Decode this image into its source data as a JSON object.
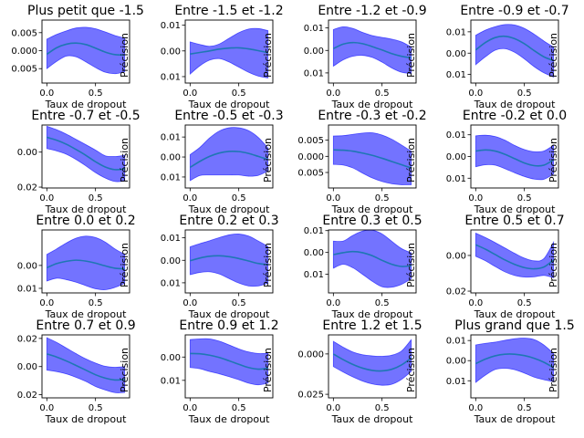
{
  "figure": {
    "xlabel": "Taux de dropout",
    "ylabel": "Précision",
    "band_color": "#0000ff",
    "line_color": "#1f77b4",
    "frame_color": "#000000"
  },
  "chart_data": [
    {
      "type": "area",
      "title": "Plus petit que -1.5",
      "xlim": [
        -0.05,
        0.85
      ],
      "ylim": [
        -0.009,
        0.0085
      ],
      "yticks": [
        0.005,
        0.0,
        -0.005
      ],
      "ytick_labels": [
        "0.005",
        "0.000",
        "0.005"
      ],
      "xticks": [
        0,
        0.5
      ],
      "xtick_labels": [
        "0.0",
        "0.5"
      ],
      "x": [
        0,
        0.1,
        0.2,
        0.3,
        0.4,
        0.5,
        0.6,
        0.7,
        0.8
      ],
      "mean": [
        -0.001,
        0.0008,
        0.0018,
        0.0021,
        0.0017,
        0.0007,
        -0.0004,
        -0.0011,
        -0.0012
      ],
      "upper": [
        0.0032,
        0.0045,
        0.0055,
        0.0063,
        0.0065,
        0.0061,
        0.0052,
        0.0042,
        0.0035
      ],
      "lower": [
        -0.005,
        -0.003,
        -0.0015,
        -0.0017,
        -0.0031,
        -0.0047,
        -0.006,
        -0.0064,
        -0.0059
      ]
    },
    {
      "type": "area",
      "title": "Entre -1.5 et -1.2",
      "xlim": [
        -0.05,
        0.85
      ],
      "ylim": [
        -0.0125,
        0.012
      ],
      "yticks": [
        0.01,
        0.0,
        -0.01
      ],
      "ytick_labels": [
        "0.01",
        "0.00",
        "0.01"
      ],
      "xticks": [
        0,
        0.5
      ],
      "xtick_labels": [
        "0.0",
        "0.5"
      ],
      "x": [
        0,
        0.1,
        0.2,
        0.3,
        0.4,
        0.5,
        0.6,
        0.7,
        0.8
      ],
      "mean": [
        -0.0012,
        -0.0006,
        0.0,
        0.0007,
        0.0011,
        0.0012,
        0.0008,
        0.0001,
        -0.0007
      ],
      "upper": [
        0.0035,
        0.0025,
        0.0018,
        0.0027,
        0.0049,
        0.0071,
        0.0085,
        0.0087,
        0.0079
      ],
      "lower": [
        -0.009,
        -0.0058,
        -0.0036,
        -0.003,
        -0.0043,
        -0.0063,
        -0.0083,
        -0.0098,
        -0.0105
      ]
    },
    {
      "type": "area",
      "title": "Entre -1.2 et -0.9",
      "xlim": [
        -0.05,
        0.85
      ],
      "ylim": [
        -0.0145,
        0.0135
      ],
      "yticks": [
        0.01,
        0.0,
        -0.01
      ],
      "ytick_labels": [
        "0.01",
        "0.00",
        "0.01"
      ],
      "xticks": [
        0,
        0.5
      ],
      "xtick_labels": [
        "0.0",
        "0.5"
      ],
      "x": [
        0,
        0.1,
        0.2,
        0.3,
        0.4,
        0.5,
        0.6,
        0.7,
        0.8
      ],
      "mean": [
        0.0008,
        0.0028,
        0.0035,
        0.003,
        0.0017,
        0.0002,
        -0.0014,
        -0.0026,
        -0.0033
      ],
      "upper": [
        0.0093,
        0.0105,
        0.0098,
        0.008,
        0.0066,
        0.0058,
        0.005,
        0.0038,
        0.0015
      ],
      "lower": [
        -0.007,
        -0.0042,
        -0.0026,
        -0.0022,
        -0.0031,
        -0.0052,
        -0.0078,
        -0.0097,
        -0.0103
      ]
    },
    {
      "type": "area",
      "title": "Entre -0.9 et -0.7",
      "xlim": [
        -0.05,
        0.85
      ],
      "ylim": [
        -0.014,
        0.0155
      ],
      "yticks": [
        0.01,
        0.0,
        -0.01
      ],
      "ytick_labels": [
        "0.01",
        "0.00",
        "0.01"
      ],
      "xticks": [
        0,
        0.5
      ],
      "xtick_labels": [
        "0.0",
        "0.5"
      ],
      "x": [
        0,
        0.1,
        0.2,
        0.3,
        0.4,
        0.5,
        0.6,
        0.7,
        0.8
      ],
      "mean": [
        0.0015,
        0.005,
        0.0073,
        0.0079,
        0.0068,
        0.0044,
        0.0012,
        -0.0017,
        -0.0035
      ],
      "upper": [
        0.0084,
        0.0108,
        0.0124,
        0.0134,
        0.0132,
        0.0116,
        0.0089,
        0.0057,
        0.0028
      ],
      "lower": [
        -0.0054,
        -0.0017,
        0.0014,
        0.0021,
        0.0004,
        -0.0027,
        -0.0063,
        -0.0092,
        -0.0112
      ]
    },
    {
      "type": "area",
      "title": "Entre -0.7 et -0.5",
      "xlim": [
        -0.05,
        0.85
      ],
      "ylim": [
        -0.0205,
        0.0155
      ],
      "yticks": [
        0.0,
        -0.02
      ],
      "ytick_labels": [
        "0.00",
        "0.02"
      ],
      "xticks": [
        0,
        0.5
      ],
      "xtick_labels": [
        "0.0",
        "0.5"
      ],
      "x": [
        0,
        0.1,
        0.2,
        0.3,
        0.4,
        0.5,
        0.6,
        0.7,
        0.8
      ],
      "mean": [
        0.0085,
        0.0068,
        0.0045,
        0.0015,
        -0.0018,
        -0.0055,
        -0.0085,
        -0.01,
        -0.0096
      ],
      "upper": [
        0.0148,
        0.0128,
        0.0103,
        0.0073,
        0.0043,
        0.0012,
        -0.0021,
        -0.0025,
        -0.0018
      ],
      "lower": [
        0.002,
        0.0007,
        -0.0012,
        -0.0042,
        -0.0078,
        -0.0117,
        -0.0148,
        -0.0168,
        -0.0165
      ]
    },
    {
      "type": "area",
      "title": "Entre -0.5 et -0.3",
      "xlim": [
        -0.05,
        0.85
      ],
      "ylim": [
        -0.0155,
        0.016
      ],
      "yticks": [
        0.01,
        0.0,
        -0.01
      ],
      "ytick_labels": [
        "0.01",
        "0.00",
        "0.01"
      ],
      "xticks": [
        0,
        0.5
      ],
      "xtick_labels": [
        "0.0",
        "0.5"
      ],
      "x": [
        0,
        0.1,
        0.2,
        0.3,
        0.4,
        0.5,
        0.6,
        0.7,
        0.8
      ],
      "mean": [
        -0.0052,
        -0.0022,
        0.0003,
        0.002,
        0.0028,
        0.0027,
        0.0018,
        0.0003,
        -0.0013
      ],
      "upper": [
        0.0012,
        0.0048,
        0.0095,
        0.013,
        0.0146,
        0.0146,
        0.0132,
        0.0098,
        0.0045
      ],
      "lower": [
        -0.0118,
        -0.0093,
        -0.009,
        -0.009,
        -0.009,
        -0.009,
        -0.0096,
        -0.0092,
        -0.007
      ]
    },
    {
      "type": "area",
      "title": "Entre -0.3 et -0.2",
      "xlim": [
        -0.05,
        0.85
      ],
      "ylim": [
        -0.0098,
        0.0097
      ],
      "yticks": [
        0.005,
        0.0,
        -0.005
      ],
      "ytick_labels": [
        "0.005",
        "0.000",
        "0.005"
      ],
      "xticks": [
        0,
        0.5
      ],
      "xtick_labels": [
        "0.0",
        "0.5"
      ],
      "x": [
        0,
        0.1,
        0.2,
        0.3,
        0.4,
        0.5,
        0.6,
        0.7,
        0.8
      ],
      "mean": [
        0.002,
        0.0019,
        0.0016,
        0.001,
        0.0003,
        -0.0006,
        -0.0016,
        -0.0026,
        -0.0036
      ],
      "upper": [
        0.0063,
        0.0064,
        0.0068,
        0.0072,
        0.0073,
        0.0066,
        0.0053,
        0.0035,
        0.0016
      ],
      "lower": [
        -0.0025,
        -0.0027,
        -0.0036,
        -0.0052,
        -0.0067,
        -0.0078,
        -0.0085,
        -0.0088,
        -0.0088
      ]
    },
    {
      "type": "area",
      "title": "Entre -0.2 et 0.0",
      "xlim": [
        -0.05,
        0.85
      ],
      "ylim": [
        -0.0145,
        0.0145
      ],
      "yticks": [
        0.01,
        0.0,
        -0.01
      ],
      "ytick_labels": [
        "0.01",
        "0.00",
        "0.01"
      ],
      "xticks": [
        0,
        0.5
      ],
      "xtick_labels": [
        "0.0",
        "0.5"
      ],
      "x": [
        0,
        0.1,
        0.2,
        0.3,
        0.4,
        0.5,
        0.6,
        0.7,
        0.8
      ],
      "mean": [
        0.0025,
        0.003,
        0.0025,
        0.001,
        -0.001,
        -0.003,
        -0.0042,
        -0.004,
        -0.0015
      ],
      "upper": [
        0.0095,
        0.0098,
        0.0092,
        0.0075,
        0.0051,
        0.0032,
        0.0022,
        0.0025,
        0.0052
      ],
      "lower": [
        -0.0047,
        -0.0038,
        -0.004,
        -0.0056,
        -0.0075,
        -0.0092,
        -0.0104,
        -0.0105,
        -0.008
      ]
    },
    {
      "type": "area",
      "title": "Entre 0.0 et 0.2",
      "xlim": [
        -0.05,
        0.85
      ],
      "ylim": [
        -0.012,
        0.0155
      ],
      "yticks": [
        0.0,
        -0.01
      ],
      "ytick_labels": [
        "0.00",
        "0.01"
      ],
      "xticks": [
        0,
        0.5
      ],
      "xtick_labels": [
        "0.0",
        "0.5"
      ],
      "x": [
        0,
        0.1,
        0.2,
        0.3,
        0.4,
        0.5,
        0.6,
        0.7,
        0.8
      ],
      "mean": [
        -0.001,
        0.0008,
        0.0018,
        0.0023,
        0.0019,
        0.001,
        -0.0002,
        -0.0012,
        -0.0015
      ],
      "upper": [
        0.0048,
        0.0072,
        0.0098,
        0.0119,
        0.0128,
        0.0122,
        0.0102,
        0.0072,
        0.0048
      ],
      "lower": [
        -0.0068,
        -0.0056,
        -0.0062,
        -0.0073,
        -0.0088,
        -0.0102,
        -0.0106,
        -0.0096,
        -0.0078
      ]
    },
    {
      "type": "area",
      "title": "Entre 0.2 et 0.3",
      "xlim": [
        -0.05,
        0.85
      ],
      "ylim": [
        -0.0145,
        0.0135
      ],
      "yticks": [
        0.01,
        0.0,
        -0.01
      ],
      "ytick_labels": [
        "0.01",
        "0.00",
        "0.01"
      ],
      "xticks": [
        0,
        0.5
      ],
      "xtick_labels": [
        "0.0",
        "0.5"
      ],
      "x": [
        0,
        0.1,
        0.2,
        0.3,
        0.4,
        0.5,
        0.6,
        0.7,
        0.8
      ],
      "mean": [
        -0.0002,
        0.001,
        0.0018,
        0.002,
        0.0016,
        0.0008,
        -0.0003,
        -0.0014,
        -0.002
      ],
      "upper": [
        0.006,
        0.0074,
        0.0087,
        0.0101,
        0.0113,
        0.0117,
        0.0108,
        0.0086,
        0.0062
      ],
      "lower": [
        -0.0064,
        -0.0054,
        -0.0051,
        -0.0061,
        -0.0081,
        -0.0101,
        -0.0114,
        -0.0114,
        -0.0102
      ]
    },
    {
      "type": "area",
      "title": "Entre 0.3 et 0.5",
      "xlim": [
        -0.05,
        0.85
      ],
      "ylim": [
        -0.0185,
        0.0103
      ],
      "yticks": [
        0.01,
        0.0,
        -0.01
      ],
      "ytick_labels": [
        "0.01",
        "0.00",
        "0.01"
      ],
      "xticks": [
        0,
        0.5
      ],
      "xtick_labels": [
        "0.0",
        "0.5"
      ],
      "x": [
        0,
        0.1,
        0.2,
        0.3,
        0.4,
        0.5,
        0.6,
        0.7,
        0.8
      ],
      "mean": [
        -0.001,
        -0.0001,
        0.0004,
        -0.0001,
        -0.0015,
        -0.0036,
        -0.0054,
        -0.0064,
        -0.0061
      ],
      "upper": [
        0.0052,
        0.0052,
        0.0078,
        0.0098,
        0.0102,
        0.0085,
        0.0051,
        0.0018,
        -0.0002
      ],
      "lower": [
        -0.0072,
        -0.0054,
        -0.007,
        -0.01,
        -0.0132,
        -0.0157,
        -0.0159,
        -0.0146,
        -0.012
      ]
    },
    {
      "type": "area",
      "title": "Entre 0.5 et 0.7",
      "xlim": [
        -0.05,
        0.85
      ],
      "ylim": [
        -0.021,
        0.0143
      ],
      "yticks": [
        0.0,
        -0.02
      ],
      "ytick_labels": [
        "0.00",
        "0.02"
      ],
      "xticks": [
        0,
        0.5
      ],
      "xtick_labels": [
        "0.0",
        "0.5"
      ],
      "x": [
        0,
        0.1,
        0.2,
        0.3,
        0.4,
        0.5,
        0.6,
        0.7,
        0.8
      ],
      "mean": [
        0.006,
        0.0035,
        0.0005,
        -0.0025,
        -0.005,
        -0.0068,
        -0.0075,
        -0.0065,
        -0.0025
      ],
      "upper": [
        0.0125,
        0.01,
        0.0072,
        0.0042,
        0.0012,
        -0.0015,
        -0.003,
        -0.0018,
        0.0075
      ],
      "lower": [
        -0.0005,
        -0.003,
        -0.0062,
        -0.0092,
        -0.0112,
        -0.0121,
        -0.012,
        -0.0112,
        -0.0125
      ]
    },
    {
      "type": "area",
      "title": "Entre 0.7 et 0.9",
      "xlim": [
        -0.05,
        0.85
      ],
      "ylim": [
        -0.0222,
        0.0225
      ],
      "yticks": [
        0.02,
        0.0,
        -0.02
      ],
      "ytick_labels": [
        "0.02",
        "0.00",
        "0.02"
      ],
      "xticks": [
        0,
        0.5
      ],
      "xtick_labels": [
        "0.0",
        "0.5"
      ],
      "x": [
        0,
        0.1,
        0.2,
        0.3,
        0.4,
        0.5,
        0.6,
        0.7,
        0.8
      ],
      "mean": [
        0.009,
        0.0068,
        0.004,
        0.0008,
        -0.0025,
        -0.0058,
        -0.0082,
        -0.0095,
        -0.0092
      ],
      "upper": [
        0.0205,
        0.0172,
        0.0132,
        0.0092,
        0.0055,
        0.0025,
        0.0002,
        -0.0005,
        0.0
      ],
      "lower": [
        -0.0025,
        -0.0036,
        -0.0052,
        -0.0076,
        -0.0105,
        -0.0141,
        -0.0166,
        -0.0185,
        -0.0184
      ]
    },
    {
      "type": "area",
      "title": "Entre 0.9 et 1.2",
      "xlim": [
        -0.05,
        0.85
      ],
      "ylim": [
        -0.0175,
        0.0095
      ],
      "yticks": [
        0.0,
        -0.01
      ],
      "ytick_labels": [
        "0.00",
        "0.01"
      ],
      "xticks": [
        0,
        0.5
      ],
      "xtick_labels": [
        "0.0",
        "0.5"
      ],
      "x": [
        0,
        0.1,
        0.2,
        0.3,
        0.4,
        0.5,
        0.6,
        0.7,
        0.8
      ],
      "mean": [
        0.0015,
        0.0014,
        0.0008,
        -0.0002,
        -0.0016,
        -0.0031,
        -0.0045,
        -0.0052,
        -0.0048
      ],
      "upper": [
        0.0075,
        0.0078,
        0.0078,
        0.0068,
        0.0052,
        0.0035,
        0.0022,
        0.0015,
        0.0016
      ],
      "lower": [
        -0.0045,
        -0.005,
        -0.0062,
        -0.0072,
        -0.0084,
        -0.0097,
        -0.0112,
        -0.0119,
        -0.0112
      ]
    },
    {
      "type": "area",
      "title": "Entre 1.2 et 1.5",
      "xlim": [
        -0.05,
        0.85
      ],
      "ylim": [
        -0.0272,
        0.0118
      ],
      "yticks": [
        0.0,
        -0.025
      ],
      "ytick_labels": [
        "0.000",
        "0.025"
      ],
      "xticks": [
        0,
        0.5
      ],
      "xtick_labels": [
        "0.0",
        "0.5"
      ],
      "x": [
        0,
        0.1,
        0.2,
        0.3,
        0.4,
        0.5,
        0.6,
        0.7,
        0.8
      ],
      "mean": [
        0.0,
        -0.0035,
        -0.0065,
        -0.0088,
        -0.0102,
        -0.0105,
        -0.0095,
        -0.0068,
        -0.0025
      ],
      "upper": [
        0.0078,
        0.0042,
        0.0012,
        -0.0005,
        -0.0012,
        -0.0015,
        -0.0008,
        0.0018,
        0.0088
      ],
      "lower": [
        -0.0078,
        -0.0112,
        -0.0142,
        -0.0168,
        -0.0186,
        -0.0194,
        -0.0188,
        -0.0158,
        -0.0108
      ]
    },
    {
      "type": "area",
      "title": "Plus grand que 1.5",
      "xlim": [
        -0.05,
        0.85
      ],
      "ylim": [
        -0.0185,
        0.0128
      ],
      "yticks": [
        0.01,
        0.0,
        -0.01
      ],
      "ytick_labels": [
        "0.01",
        "0.00",
        "0.01"
      ],
      "xticks": [
        0,
        0.5
      ],
      "xtick_labels": [
        "0.0",
        "0.5"
      ],
      "x": [
        0,
        0.1,
        0.2,
        0.3,
        0.4,
        0.5,
        0.6,
        0.7,
        0.8
      ],
      "mean": [
        -0.0015,
        0.0008,
        0.0024,
        0.0032,
        0.0032,
        0.0025,
        0.0012,
        -0.0008,
        -0.0035
      ],
      "upper": [
        0.0078,
        0.0086,
        0.0092,
        0.0101,
        0.0109,
        0.0112,
        0.0105,
        0.0078,
        0.0035
      ],
      "lower": [
        -0.0108,
        -0.0072,
        -0.0044,
        -0.0038,
        -0.0045,
        -0.0062,
        -0.0082,
        -0.0095,
        -0.0105
      ]
    }
  ]
}
